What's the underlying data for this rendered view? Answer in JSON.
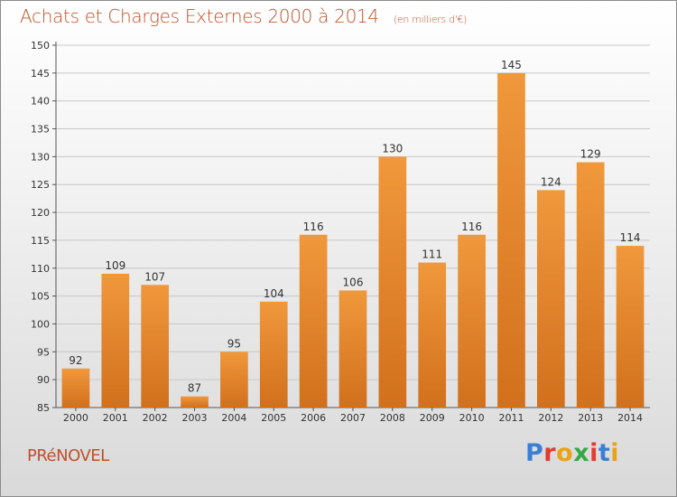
{
  "header": {
    "title": "Achats et Charges Externes 2000 à 2014",
    "subtitle": "(en milliers d'€)"
  },
  "footer": {
    "place": "PRéNOVEL",
    "brand": "Proxiti",
    "brand_colors": [
      "#3a7fd4",
      "#e03c31",
      "#e8a317",
      "#35a945",
      "#e03c31",
      "#3a7fd4",
      "#e8a317"
    ]
  },
  "chart_data": {
    "type": "bar",
    "categories": [
      "2000",
      "2001",
      "2002",
      "2003",
      "2004",
      "2005",
      "2006",
      "2007",
      "2008",
      "2009",
      "2010",
      "2011",
      "2012",
      "2013",
      "2014"
    ],
    "values": [
      92,
      109,
      107,
      87,
      95,
      104,
      116,
      106,
      130,
      111,
      116,
      145,
      124,
      129,
      114
    ],
    "ylim": [
      85,
      150
    ],
    "yticks": [
      85,
      90,
      95,
      100,
      105,
      110,
      115,
      120,
      125,
      130,
      135,
      140,
      145,
      150
    ],
    "grid": true,
    "bar_color": "#f0983c",
    "bar_color_dark": "#d2701c"
  }
}
